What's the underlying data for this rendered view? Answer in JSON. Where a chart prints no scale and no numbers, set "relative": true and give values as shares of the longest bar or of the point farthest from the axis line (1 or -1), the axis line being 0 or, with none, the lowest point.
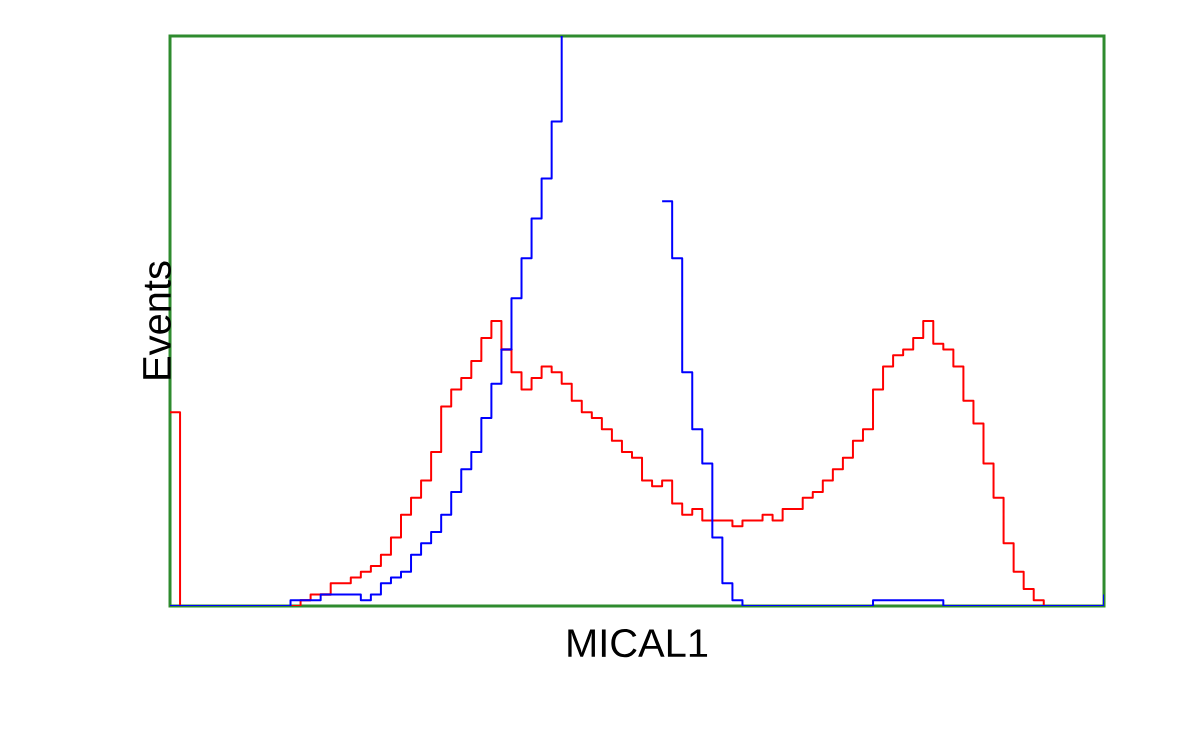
{
  "chart_data": {
    "type": "step",
    "relative": true,
    "xlabel": "MICAL1",
    "ylabel": "Events",
    "categories": [
      null,
      null,
      null,
      null,
      null,
      null,
      null,
      null,
      null,
      null,
      null,
      null,
      null,
      null,
      null,
      null,
      null,
      null,
      null,
      null,
      null,
      null,
      null,
      null,
      null,
      null,
      null,
      null,
      null,
      null,
      null,
      null,
      null,
      null,
      null,
      null,
      null,
      null,
      null,
      null,
      null,
      null,
      null,
      null,
      null,
      null,
      null,
      null,
      null,
      null,
      null,
      null,
      null,
      null,
      null,
      null,
      null,
      null,
      null,
      null,
      null,
      null,
      null,
      null,
      null,
      null,
      null,
      null,
      null,
      null,
      null,
      null,
      null,
      null,
      null,
      null,
      null,
      null,
      null,
      null,
      null,
      null,
      null,
      null,
      null,
      null,
      null,
      null,
      null,
      null,
      null,
      null,
      null,
      null
    ],
    "series": [
      {
        "color": "#ff0000",
        "values": [
          0.34,
          0,
          0,
          0,
          0,
          0,
          0,
          0,
          0,
          0,
          0,
          0,
          0,
          0.01,
          0.02,
          0.02,
          0.04,
          0.04,
          0.05,
          0.06,
          0.07,
          0.09,
          0.12,
          0.16,
          0.19,
          0.22,
          0.27,
          0.35,
          0.38,
          0.4,
          0.43,
          0.47,
          0.5,
          0.45,
          0.41,
          0.38,
          0.4,
          0.42,
          0.41,
          0.39,
          0.36,
          0.34,
          0.33,
          0.31,
          0.29,
          0.27,
          0.26,
          0.22,
          0.21,
          0.22,
          0.18,
          0.16,
          0.17,
          0.15,
          0.15,
          0.15,
          0.14,
          0.15,
          0.15,
          0.16,
          0.15,
          0.17,
          0.17,
          0.19,
          0.2,
          0.22,
          0.24,
          0.26,
          0.29,
          0.31,
          0.38,
          0.42,
          0.44,
          0.45,
          0.47,
          0.5,
          0.46,
          0.45,
          0.42,
          0.36,
          0.32,
          0.25,
          0.19,
          0.11,
          0.06,
          0.03,
          0.01,
          0,
          0,
          0,
          null,
          null,
          null,
          null
        ]
      },
      {
        "color": "#0000ff",
        "values": [
          0,
          0,
          0,
          0,
          0,
          0,
          0,
          0,
          0,
          0,
          0,
          0,
          0.01,
          0.01,
          0.01,
          0.02,
          0.02,
          0.02,
          0.02,
          0.01,
          0.02,
          0.04,
          0.05,
          0.06,
          0.09,
          0.11,
          0.13,
          0.16,
          0.2,
          0.24,
          0.27,
          0.33,
          0.39,
          0.45,
          0.54,
          0.61,
          0.68,
          0.75,
          0.85,
          1,
          null,
          null,
          null,
          null,
          null,
          null,
          null,
          null,
          null,
          0.71,
          0.61,
          0.41,
          0.31,
          0.25,
          0.12,
          0.04,
          0.01,
          0,
          0,
          0,
          0,
          0,
          0,
          0,
          0,
          0,
          0,
          0,
          0,
          0,
          0.01,
          0.01,
          0.01,
          0.01,
          0.01,
          0.01,
          0.01,
          0,
          0,
          0,
          0,
          0,
          0,
          0,
          0,
          0,
          0,
          0,
          0,
          0,
          0,
          0,
          0,
          0.02
        ]
      }
    ]
  }
}
